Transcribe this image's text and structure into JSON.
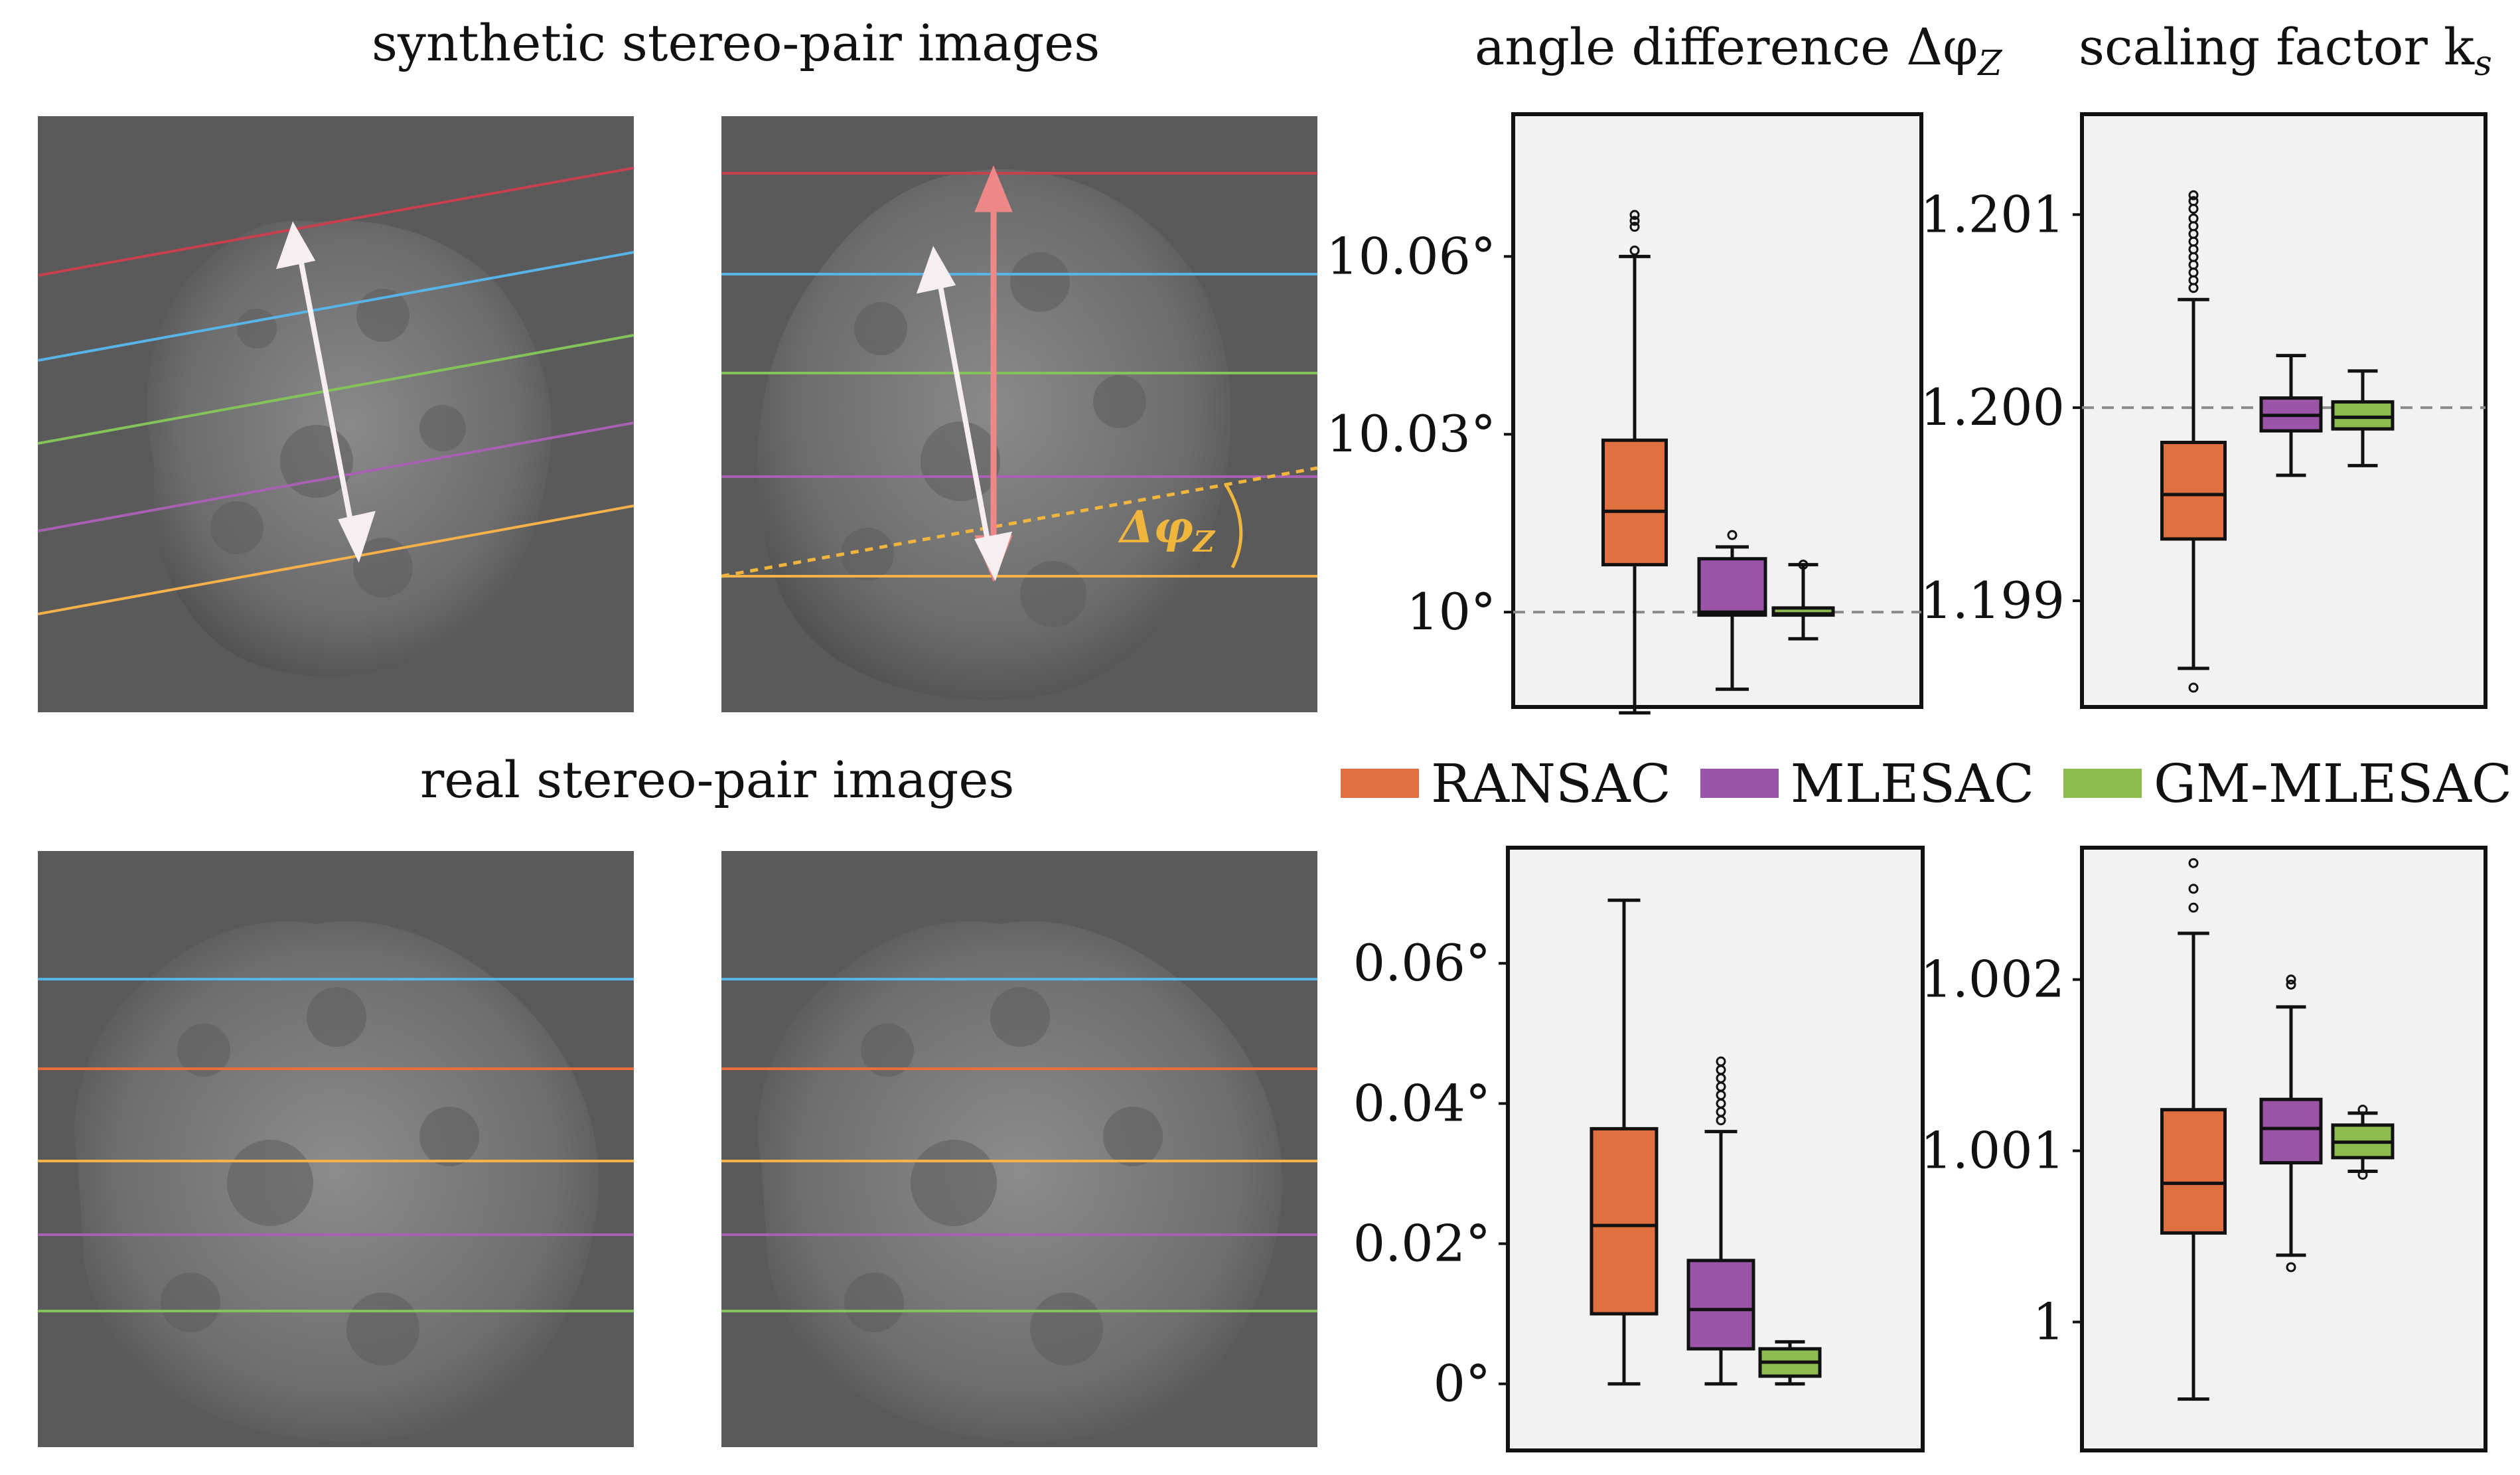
{
  "figure": {
    "synthetic_title": "synthetic stereo-pair images",
    "real_title": "real stereo-pair images",
    "angle_title": "angle difference Δφ",
    "angle_title_sub": "Z",
    "scale_title": "scaling factor k",
    "scale_title_sub": "s",
    "annotation_angle": "Δφ",
    "annotation_angle_sub": "Z"
  },
  "colors": {
    "ransac": "#e07040",
    "mlesac": "#9b55a8",
    "gm_mlesac": "#8dbb4f",
    "panel_bg": "#f2f2f2",
    "line_red": "#c6404f",
    "line_blue": "#58b4e6",
    "line_green": "#84c35a",
    "line_purple": "#a662b0",
    "line_orange": "#f6b14a",
    "line_orange_real": "#ea6e3c",
    "arrow_white": "#f7eef0",
    "arrow_pink": "#ee8888",
    "annotation": "#f0b53d"
  },
  "legend": {
    "items": [
      {
        "label": "RANSAC",
        "color": "#e07040"
      },
      {
        "label": "MLESAC",
        "color": "#9b55a8"
      },
      {
        "label": "GM-MLESAC",
        "color": "#8dbb4f"
      }
    ]
  },
  "chart_data": [
    {
      "id": "synthetic-angle",
      "type": "box",
      "title": "angle difference Δφ_Z",
      "ylim": [
        9.984,
        10.084
      ],
      "ticks": [
        10.0,
        10.03,
        10.06
      ],
      "tick_labels": [
        "10°",
        "10.03°",
        "10.06°"
      ],
      "reference": 10.0,
      "series": [
        {
          "name": "RANSAC",
          "min": 9.983,
          "q1": 10.008,
          "median": 10.017,
          "q3": 10.029,
          "max": 10.06,
          "outliers": [
            10.061,
            10.065,
            10.066,
            10.067
          ]
        },
        {
          "name": "MLESAC",
          "min": 9.987,
          "q1": 9.9995,
          "median": 10.0,
          "q3": 10.009,
          "max": 10.011,
          "outliers": [
            10.013
          ]
        },
        {
          "name": "GM-MLESAC",
          "min": 9.9955,
          "q1": 9.9995,
          "median": 9.9997,
          "q3": 10.0007,
          "max": 10.008,
          "outliers": [
            10.008
          ]
        }
      ]
    },
    {
      "id": "synthetic-scale",
      "type": "box",
      "title": "scaling factor k_s",
      "ylim": [
        1.19845,
        1.20152
      ],
      "ticks": [
        1.199,
        1.2,
        1.201
      ],
      "tick_labels": [
        "1.199",
        "1.200",
        "1.201"
      ],
      "reference": 1.2,
      "series": [
        {
          "name": "RANSAC",
          "min": 1.19865,
          "q1": 1.19932,
          "median": 1.19955,
          "q3": 1.19982,
          "max": 1.20056,
          "outliers": [
            1.19855,
            1.20062,
            1.20066,
            1.2007,
            1.20074,
            1.20078,
            1.20082,
            1.20086,
            1.2009,
            1.20094,
            1.20098,
            1.20103,
            1.20107,
            1.2011
          ]
        },
        {
          "name": "MLESAC",
          "min": 1.19965,
          "q1": 1.19988,
          "median": 1.19996,
          "q3": 1.20005,
          "max": 1.20027,
          "outliers": []
        },
        {
          "name": "GM-MLESAC",
          "min": 1.1997,
          "q1": 1.19989,
          "median": 1.19995,
          "q3": 1.20003,
          "max": 1.20019,
          "outliers": []
        }
      ]
    },
    {
      "id": "real-angle",
      "type": "box",
      "ylim": [
        -0.0095,
        0.0765
      ],
      "ticks": [
        0,
        0.02,
        0.04,
        0.06
      ],
      "tick_labels": [
        "0°",
        "0.02°",
        "0.04°",
        "0.06°"
      ],
      "series": [
        {
          "name": "RANSAC",
          "min": 0.0,
          "q1": 0.01,
          "median": 0.0226,
          "q3": 0.0364,
          "max": 0.069,
          "outliers": []
        },
        {
          "name": "MLESAC",
          "min": 0.0,
          "q1": 0.005,
          "median": 0.0106,
          "q3": 0.0176,
          "max": 0.036,
          "outliers": [
            0.0376,
            0.0388,
            0.04,
            0.0412,
            0.0424,
            0.0436,
            0.0448,
            0.046
          ]
        },
        {
          "name": "GM-MLESAC",
          "min": 0.0,
          "q1": 0.0011,
          "median": 0.0031,
          "q3": 0.005,
          "max": 0.006,
          "outliers": []
        }
      ]
    },
    {
      "id": "real-scale",
      "type": "box",
      "ylim": [
        0.99925,
        1.00277
      ],
      "ticks": [
        1.0,
        1.001,
        1.002
      ],
      "tick_labels": [
        "1",
        "1.001",
        "1.002"
      ],
      "series": [
        {
          "name": "RANSAC",
          "min": 0.99955,
          "q1": 1.00052,
          "median": 1.00081,
          "q3": 1.00124,
          "max": 1.00227,
          "outliers": [
            1.00242,
            1.00253,
            1.00268
          ]
        },
        {
          "name": "MLESAC",
          "min": 1.00039,
          "q1": 1.00093,
          "median": 1.00113,
          "q3": 1.0013,
          "max": 1.00184,
          "outliers": [
            1.00032,
            1.00197,
            1.002
          ]
        },
        {
          "name": "GM-MLESAC",
          "min": 1.00088,
          "q1": 1.00096,
          "median": 1.00105,
          "q3": 1.00115,
          "max": 1.00122,
          "outliers": [
            1.00086,
            1.00124
          ]
        }
      ]
    }
  ]
}
